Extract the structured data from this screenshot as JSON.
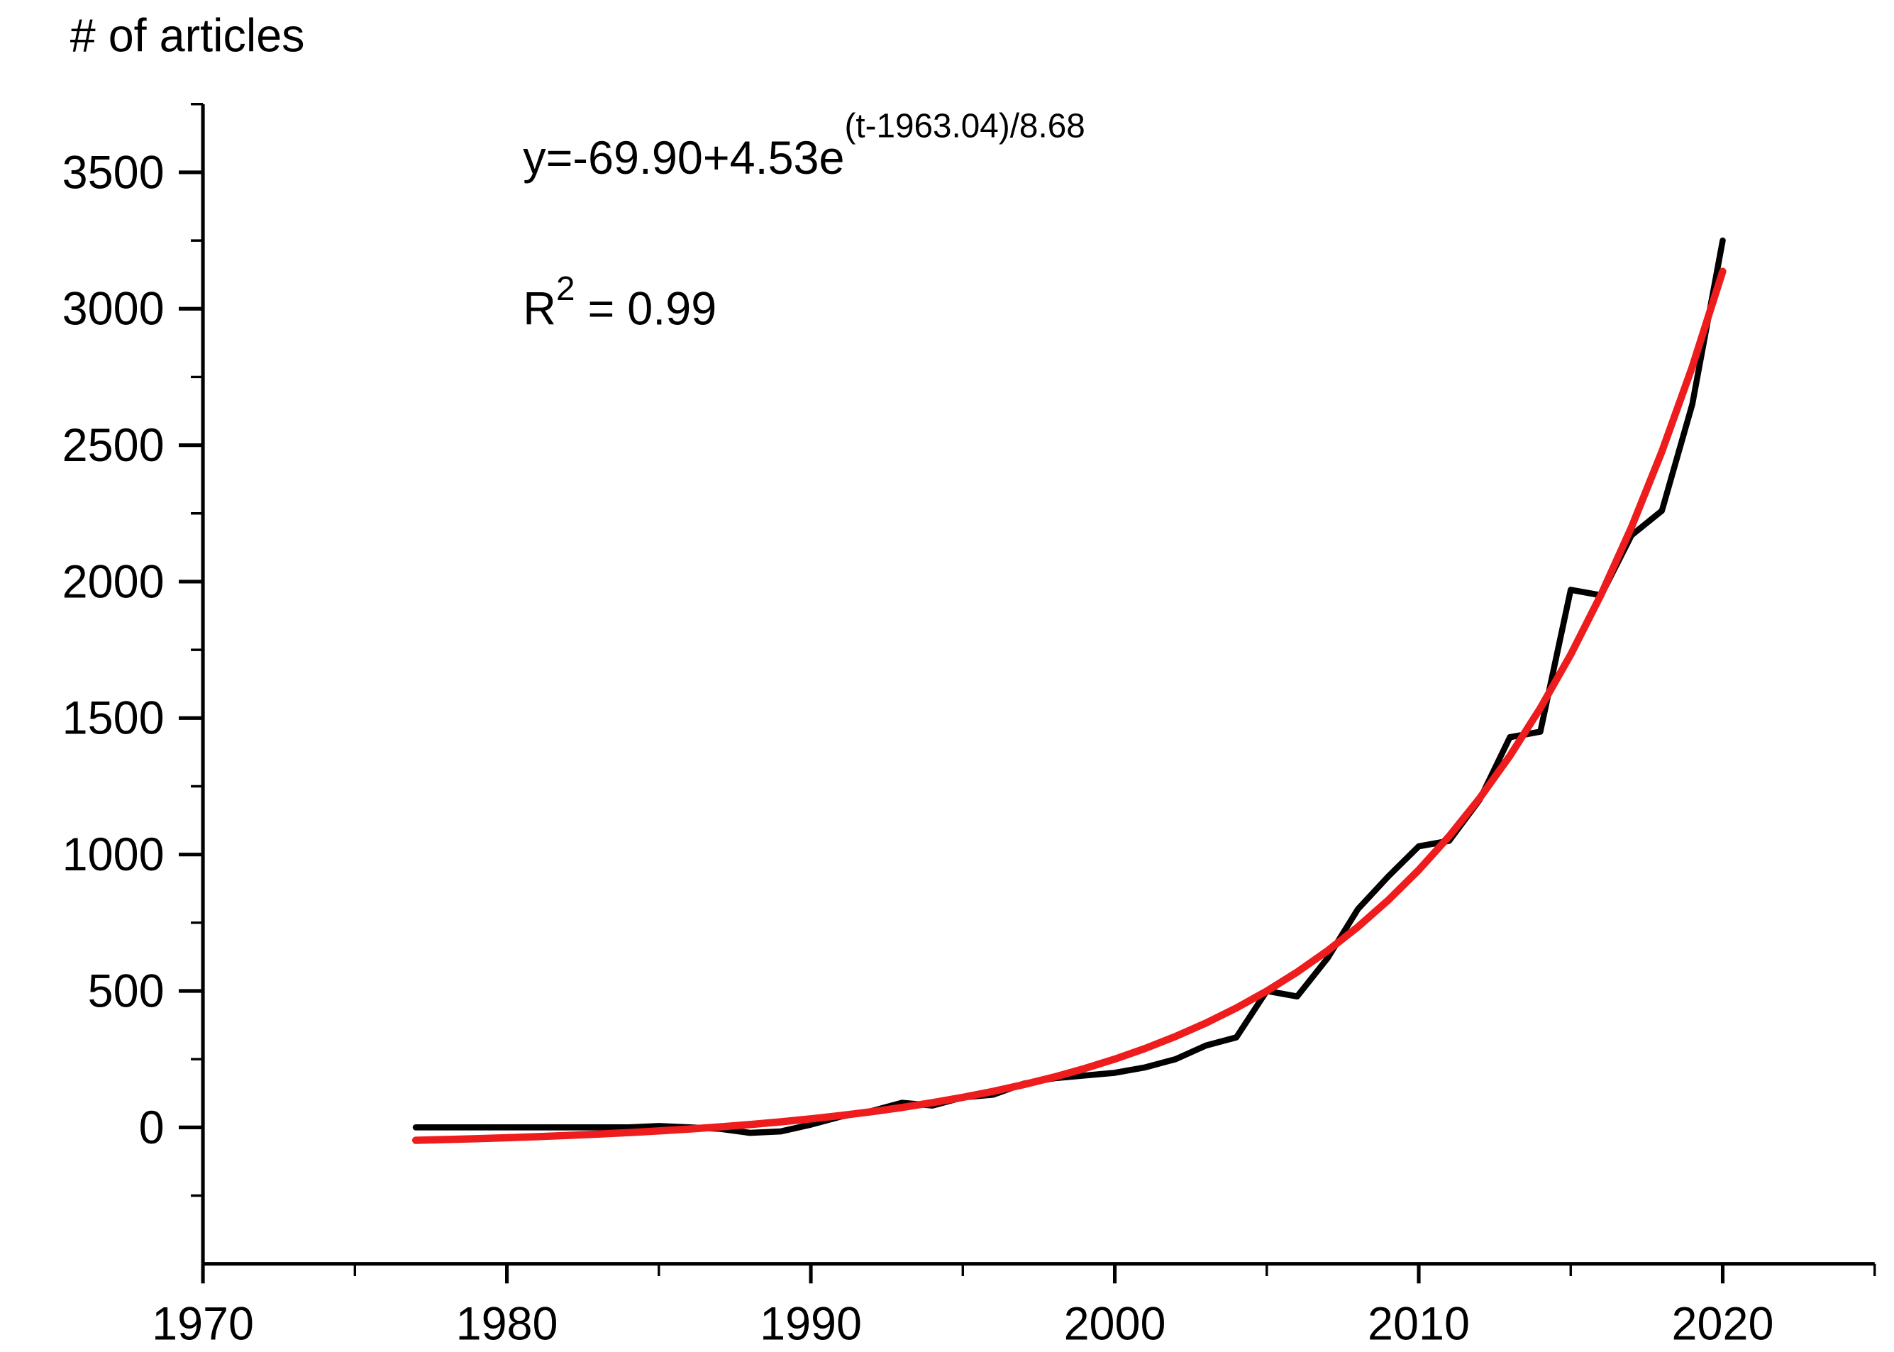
{
  "chart_data": {
    "type": "line",
    "ylabel": "# of articles",
    "equation": {
      "base": "y=-69.90+4.53e",
      "exponent": "(t-1963.04)/8.68"
    },
    "r_squared": {
      "base": "R",
      "exponent": "2",
      "rest": " = 0.99"
    },
    "x": [
      1977,
      1978,
      1979,
      1980,
      1981,
      1982,
      1983,
      1984,
      1985,
      1986,
      1987,
      1988,
      1989,
      1990,
      1991,
      1992,
      1993,
      1994,
      1995,
      1996,
      1997,
      1998,
      1999,
      2000,
      2001,
      2002,
      2003,
      2004,
      2005,
      2006,
      2007,
      2008,
      2009,
      2010,
      2011,
      2012,
      2013,
      2014,
      2015,
      2016,
      2017,
      2018,
      2019,
      2020
    ],
    "series": [
      {
        "color": "#000000",
        "values": [
          0,
          0,
          0,
          0,
          0,
          0,
          0,
          0,
          5,
          0,
          -5,
          -20,
          -15,
          10,
          40,
          60,
          90,
          80,
          110,
          120,
          160,
          180,
          190,
          200,
          220,
          250,
          300,
          330,
          500,
          480,
          620,
          800,
          920,
          1030,
          1050,
          1200,
          1430,
          1450,
          1970,
          1950,
          2170,
          2260,
          2650,
          3250
        ]
      },
      {
        "color": "#ee1c1c",
        "values": [
          -47.3,
          -44.5,
          -41.4,
          -37.9,
          -34.0,
          -29.6,
          -24.7,
          -19.2,
          -13.0,
          -6.1,
          1.7,
          10.4,
          20.2,
          31.3,
          43.6,
          57.5,
          73.0,
          90.5,
          110.0,
          132.0,
          156.7,
          184.3,
          215.4,
          250.2,
          289.3,
          333.2,
          382.4,
          437.6,
          499.6,
          569.1,
          647.2,
          734.7,
          833.0,
          943.2,
          1066.9,
          1205.7,
          1361.6,
          1536.4,
          1732.6,
          1952.7,
          2199.6,
          2476.9,
          2787.6,
          3136.9
        ]
      }
    ],
    "xlim": [
      1970,
      2025
    ],
    "xticks": [
      1970,
      1980,
      1990,
      2000,
      2010,
      2020
    ],
    "xminorticks": [
      1975,
      1985,
      1995,
      2005,
      2015,
      2025
    ],
    "ylim": [
      -500,
      3750
    ],
    "yticks": [
      0,
      500,
      1000,
      1500,
      2000,
      2500,
      3000,
      3500
    ],
    "yminorticks": [
      -250,
      250,
      750,
      1250,
      1750,
      2250,
      2750,
      3250,
      3750
    ]
  }
}
